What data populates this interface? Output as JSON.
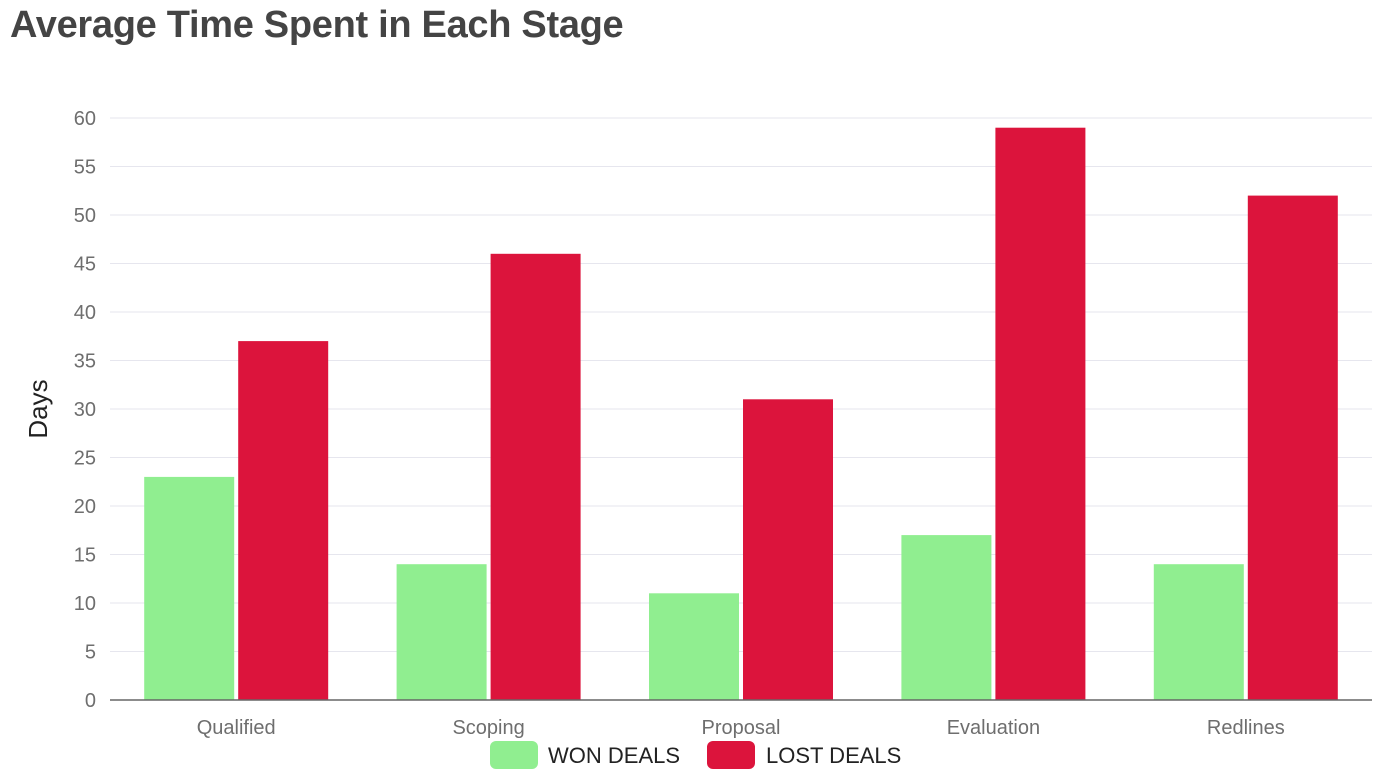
{
  "chart_data": {
    "type": "bar",
    "title": "Average Time Spent in Each Stage",
    "xlabel": "",
    "ylabel": "Days",
    "categories": [
      "Qualified",
      "Scoping",
      "Proposal",
      "Evaluation",
      "Redlines"
    ],
    "series": [
      {
        "name": "WON DEALS",
        "values": [
          23,
          14,
          11,
          17,
          14
        ],
        "color": "#90ee90"
      },
      {
        "name": "LOST DEALS",
        "values": [
          37,
          46,
          31,
          59,
          52
        ],
        "color": "#dc143c"
      }
    ],
    "ylim": [
      0,
      60
    ],
    "yticks": [
      0,
      5,
      10,
      15,
      20,
      25,
      30,
      35,
      40,
      45,
      50,
      55,
      60
    ],
    "grid": true,
    "legend_position": "bottom"
  }
}
